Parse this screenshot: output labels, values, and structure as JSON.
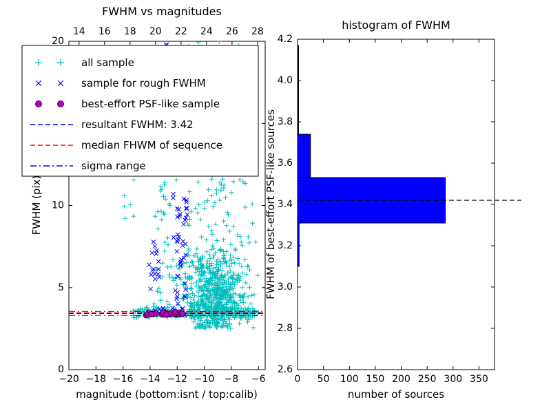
{
  "figure": {
    "background": "#ffffff"
  },
  "left_plot": {
    "title": "FWHM vs magnitudes",
    "xlabel": "magnitude (bottom:isnt / top:calib)",
    "ylabel": "FWHM (pix)",
    "xticks_bottom": [
      {
        "v": -20,
        "label": "−20"
      },
      {
        "v": -18,
        "label": "−18"
      },
      {
        "v": -16,
        "label": "−16"
      },
      {
        "v": -14,
        "label": "−14"
      },
      {
        "v": -12,
        "label": "−12"
      },
      {
        "v": -10,
        "label": "−10"
      },
      {
        "v": -8,
        "label": "−8"
      },
      {
        "v": -6,
        "label": "−6"
      }
    ],
    "xticks_top": [
      {
        "v": 14,
        "label": "14"
      },
      {
        "v": 16,
        "label": "16"
      },
      {
        "v": 18,
        "label": "18"
      },
      {
        "v": 20,
        "label": "20"
      },
      {
        "v": 22,
        "label": "22"
      },
      {
        "v": 24,
        "label": "24"
      },
      {
        "v": 26,
        "label": "26"
      },
      {
        "v": 28,
        "label": "28"
      }
    ],
    "yticks": [
      {
        "v": 0,
        "label": "0"
      },
      {
        "v": 5,
        "label": "5"
      },
      {
        "v": 10,
        "label": "10"
      },
      {
        "v": 15,
        "label": "15"
      },
      {
        "v": 20,
        "label": "20"
      }
    ],
    "legend": {
      "items": [
        {
          "label": "all sample",
          "type": "marker",
          "marker": "+",
          "color": "#00bfbf"
        },
        {
          "label": "sample for rough FWHM",
          "type": "marker",
          "marker": "x",
          "color": "#0000ff"
        },
        {
          "label": "best-effort PSF-like sample",
          "type": "marker",
          "marker": "o",
          "color": "#bf00bf"
        },
        {
          "label": "resultant FWHM: 3.42",
          "type": "line",
          "style": "dashed",
          "color": "#0000ff"
        },
        {
          "label": "median FHWM of sequence",
          "type": "line",
          "style": "dashed",
          "color": "#ff0000"
        },
        {
          "label": "sigma range",
          "type": "line",
          "style": "dashdot",
          "color": "#0000ff"
        }
      ]
    }
  },
  "right_plot": {
    "title": "histogram of FWHM",
    "xlabel": "number of sources",
    "ylabel": "FWHM of best-effort PSF-like sources",
    "xticks": [
      {
        "v": 0,
        "label": "0"
      },
      {
        "v": 50,
        "label": "50"
      },
      {
        "v": 100,
        "label": "100"
      },
      {
        "v": 150,
        "label": "150"
      },
      {
        "v": 200,
        "label": "200"
      },
      {
        "v": 250,
        "label": "250"
      },
      {
        "v": 300,
        "label": "300"
      },
      {
        "v": 350,
        "label": "350"
      }
    ],
    "yticks": [
      {
        "v": 2.6,
        "label": "2.6"
      },
      {
        "v": 2.8,
        "label": "2.8"
      },
      {
        "v": 3.0,
        "label": "3.0"
      },
      {
        "v": 3.2,
        "label": "3.2"
      },
      {
        "v": 3.4,
        "label": "3.4"
      },
      {
        "v": 3.6,
        "label": "3.6"
      },
      {
        "v": 3.8,
        "label": "3.8"
      },
      {
        "v": 4.0,
        "label": "4.0"
      },
      {
        "v": 4.2,
        "label": "4.2"
      }
    ]
  },
  "chart_data": [
    {
      "type": "scatter",
      "title": "FWHM vs magnitudes",
      "xlabel": "magnitude (bottom:isnt / top:calib)",
      "ylabel": "FWHM (pix)",
      "xlim": [
        -20,
        -5.5
      ],
      "ylim": [
        0,
        20
      ],
      "top_axis_lim": [
        13.2,
        28.6
      ],
      "seed": 20,
      "series": [
        {
          "name": "all sample",
          "marker": "+",
          "color": "#00bfbf",
          "clusters": [
            {
              "n": 650,
              "x": {
                "dist": "normal",
                "mean": -9.2,
                "sd": 1.15,
                "min": -12.4,
                "max": -5.7
              },
              "y": {
                "dist": "normal",
                "mean": 4.3,
                "sd": 1.4,
                "min": 2.5,
                "max": 9.5
              }
            },
            {
              "n": 240,
              "x": {
                "dist": "uniform",
                "min": -15.4,
                "max": -6.0
              },
              "y": {
                "dist": "normal",
                "mean": 3.45,
                "sd": 0.16,
                "min": 2.9,
                "max": 4.1
              }
            },
            {
              "n": 90,
              "x": {
                "dist": "normal",
                "mean": -12.9,
                "sd": 0.35,
                "min": -14.0,
                "max": -11.9
              },
              "y": {
                "dist": "uniform",
                "min": 3.2,
                "max": 20.0
              }
            },
            {
              "n": 130,
              "x": {
                "dist": "normal",
                "mean": -9.2,
                "sd": 1.5,
                "min": -13.2,
                "max": -6.0
              },
              "y": {
                "dist": "uniform",
                "min": 6.0,
                "max": 20.0
              }
            },
            {
              "n": 10,
              "x": {
                "dist": "uniform",
                "min": -15.9,
                "max": -14.8
              },
              "y": {
                "dist": "uniform",
                "min": 9.0,
                "max": 12.5
              }
            },
            {
              "n": 25,
              "x": {
                "dist": "uniform",
                "min": -12.8,
                "max": -6.2
              },
              "y": {
                "dist": "uniform",
                "min": 18.5,
                "max": 20.0
              }
            }
          ]
        },
        {
          "name": "sample for rough FWHM",
          "marker": "x",
          "color": "#0000ff",
          "clusters": [
            {
              "n": 50,
              "x": {
                "dist": "normal",
                "mean": -11.75,
                "sd": 0.3,
                "min": -12.5,
                "max": -11.1
              },
              "y": {
                "dist": "uniform",
                "min": 3.3,
                "max": 12.5
              }
            },
            {
              "n": 16,
              "x": {
                "dist": "normal",
                "mean": -13.6,
                "sd": 0.25,
                "min": -14.2,
                "max": -13.0
              },
              "y": {
                "dist": "normal",
                "mean": 6.2,
                "sd": 0.9,
                "min": 4.5,
                "max": 8.0
              }
            },
            {
              "n": 8,
              "x": {
                "dist": "uniform",
                "min": -14.3,
                "max": -12.6
              },
              "y": {
                "dist": "normal",
                "mean": 3.5,
                "sd": 0.12,
                "min": 3.2,
                "max": 3.8
              }
            },
            {
              "n": 4,
              "x": {
                "dist": "uniform",
                "min": -12.9,
                "max": -12.1
              },
              "y": {
                "dist": "uniform",
                "min": 19.0,
                "max": 20.0
              }
            }
          ]
        },
        {
          "name": "best-effort PSF-like sample",
          "marker": "o",
          "color": "#bf00bf",
          "edge_color": "#35003a",
          "clusters": [
            {
              "n": 26,
              "x": {
                "dist": "uniform",
                "min": -14.3,
                "max": -11.6
              },
              "y": {
                "dist": "normal",
                "mean": 3.42,
                "sd": 0.05,
                "min": 3.3,
                "max": 3.55
              }
            }
          ]
        }
      ],
      "hlines": [
        {
          "name": "resultant FWHM",
          "y": 3.42,
          "color": "#0000ff",
          "style": "dashed",
          "width": 1.3
        },
        {
          "name": "median FHWM of sequence",
          "y": 3.46,
          "color": "#ff0000",
          "style": "dashed",
          "width": 1.3
        },
        {
          "name": "sigma range lower",
          "y": 3.3,
          "color": "#0000ff",
          "style": "dashdot",
          "width": 0.9
        },
        {
          "name": "sigma range upper",
          "y": 3.55,
          "color": "#0000ff",
          "style": "dashdot",
          "width": 0.9
        }
      ]
    },
    {
      "type": "bar",
      "orientation": "horizontal",
      "title": "histogram of FWHM",
      "xlabel": "number of sources",
      "ylabel": "FWHM of best-effort PSF-like sources",
      "xlim": [
        0,
        380
      ],
      "ylim": [
        2.6,
        4.2
      ],
      "bin_edges": [
        3.1,
        3.31,
        3.53,
        3.74,
        3.96,
        4.17
      ],
      "counts": [
        3,
        285,
        25,
        2,
        2
      ],
      "bar_color": "#0000ff",
      "bar_edge_color": "#000000",
      "median_line": {
        "y": 3.42,
        "color": "#000000",
        "style": "dashed"
      }
    }
  ]
}
